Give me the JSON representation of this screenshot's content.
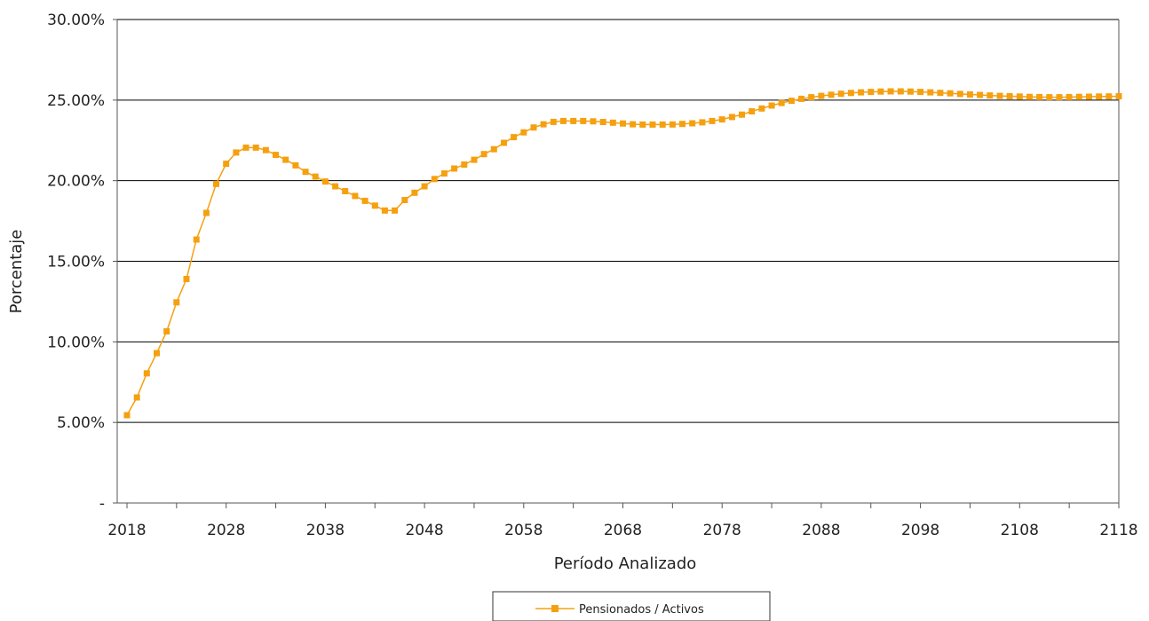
{
  "chart_data": {
    "type": "line",
    "xlabel": "Período Analizado",
    "ylabel": "Porcentaje",
    "ylim": [
      0,
      0.3
    ],
    "xlim": [
      2018,
      2118
    ],
    "y_ticks": [
      {
        "value": 0.0,
        "label": "-"
      },
      {
        "value": 0.05,
        "label": "5.00%"
      },
      {
        "value": 0.1,
        "label": "10.00%"
      },
      {
        "value": 0.15,
        "label": "15.00%"
      },
      {
        "value": 0.2,
        "label": "20.00%"
      },
      {
        "value": 0.25,
        "label": "25.00%"
      },
      {
        "value": 0.3,
        "label": "30.00%"
      }
    ],
    "x_tick_labels": [
      "2018",
      "2028",
      "2038",
      "2048",
      "2058",
      "2068",
      "2078",
      "2088",
      "2098",
      "2108",
      "2118"
    ],
    "grid": "horizontal",
    "legend_position": "bottom",
    "series": [
      {
        "name": "Pensionados / Activos",
        "color": "#F5A010",
        "marker": "square",
        "x": [
          2018,
          2019,
          2020,
          2021,
          2022,
          2023,
          2024,
          2025,
          2026,
          2027,
          2028,
          2029,
          2030,
          2031,
          2032,
          2033,
          2034,
          2035,
          2036,
          2037,
          2038,
          2039,
          2040,
          2041,
          2042,
          2043,
          2044,
          2045,
          2046,
          2047,
          2048,
          2049,
          2050,
          2051,
          2052,
          2053,
          2054,
          2055,
          2056,
          2057,
          2058,
          2059,
          2060,
          2061,
          2062,
          2063,
          2064,
          2065,
          2066,
          2067,
          2068,
          2069,
          2070,
          2071,
          2072,
          2073,
          2074,
          2075,
          2076,
          2077,
          2078,
          2079,
          2080,
          2081,
          2082,
          2083,
          2084,
          2085,
          2086,
          2087,
          2088,
          2089,
          2090,
          2091,
          2092,
          2093,
          2094,
          2095,
          2096,
          2097,
          2098,
          2099,
          2100,
          2101,
          2102,
          2103,
          2104,
          2105,
          2106,
          2107,
          2108,
          2109,
          2110,
          2111,
          2112,
          2113,
          2114,
          2115,
          2116,
          2117,
          2118
        ],
        "values": [
          0.0545,
          0.0655,
          0.0805,
          0.093,
          0.1065,
          0.1245,
          0.139,
          0.1635,
          0.18,
          0.198,
          0.2105,
          0.2175,
          0.2205,
          0.2205,
          0.219,
          0.216,
          0.213,
          0.2095,
          0.2055,
          0.2025,
          0.1995,
          0.1965,
          0.1935,
          0.1905,
          0.1875,
          0.1845,
          0.1815,
          0.1815,
          0.188,
          0.1925,
          0.1965,
          0.201,
          0.2045,
          0.2075,
          0.21,
          0.213,
          0.2165,
          0.2195,
          0.2235,
          0.227,
          0.23,
          0.233,
          0.235,
          0.2365,
          0.237,
          0.237,
          0.237,
          0.2368,
          0.2364,
          0.236,
          0.2355,
          0.235,
          0.2348,
          0.2348,
          0.2348,
          0.2349,
          0.2352,
          0.2356,
          0.2362,
          0.237,
          0.238,
          0.2395,
          0.241,
          0.243,
          0.2448,
          0.2466,
          0.2482,
          0.2496,
          0.2508,
          0.2518,
          0.2526,
          0.2533,
          0.2539,
          0.2544,
          0.2548,
          0.2551,
          0.2553,
          0.2554,
          0.2554,
          0.2553,
          0.2551,
          0.2548,
          0.2545,
          0.2542,
          0.2538,
          0.2535,
          0.2532,
          0.2529,
          0.2526,
          0.2524,
          0.2522,
          0.252,
          0.2519,
          0.2518,
          0.2518,
          0.2519,
          0.252,
          0.2521,
          0.2522,
          0.2523,
          0.2524
        ]
      }
    ]
  }
}
